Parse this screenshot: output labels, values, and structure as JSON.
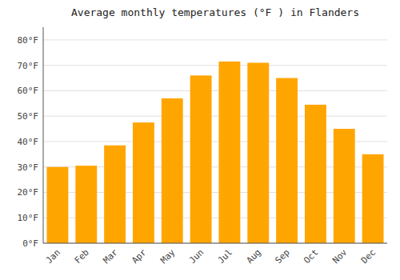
{
  "chart_data": {
    "type": "bar",
    "title": "Average monthly temperatures (°F ) in Flanders",
    "categories": [
      "Jan",
      "Feb",
      "Mar",
      "Apr",
      "May",
      "Jun",
      "Jul",
      "Aug",
      "Sep",
      "Oct",
      "Nov",
      "Dec"
    ],
    "values": [
      30,
      30.5,
      38.5,
      47.5,
      57,
      66,
      71.5,
      71,
      65,
      54.5,
      45,
      35
    ],
    "color": "#FFA500",
    "ylim": [
      0,
      85
    ],
    "yticks": [
      {
        "value": 0,
        "label": "0°F"
      },
      {
        "value": 10,
        "label": "10°F"
      },
      {
        "value": 20,
        "label": "20°F"
      },
      {
        "value": 30,
        "label": "30°F"
      },
      {
        "value": 40,
        "label": "40°F"
      },
      {
        "value": 50,
        "label": "50°F"
      },
      {
        "value": 60,
        "label": "60°F"
      },
      {
        "value": 70,
        "label": "70°F"
      },
      {
        "value": 80,
        "label": "80°F"
      }
    ],
    "grid": true
  }
}
